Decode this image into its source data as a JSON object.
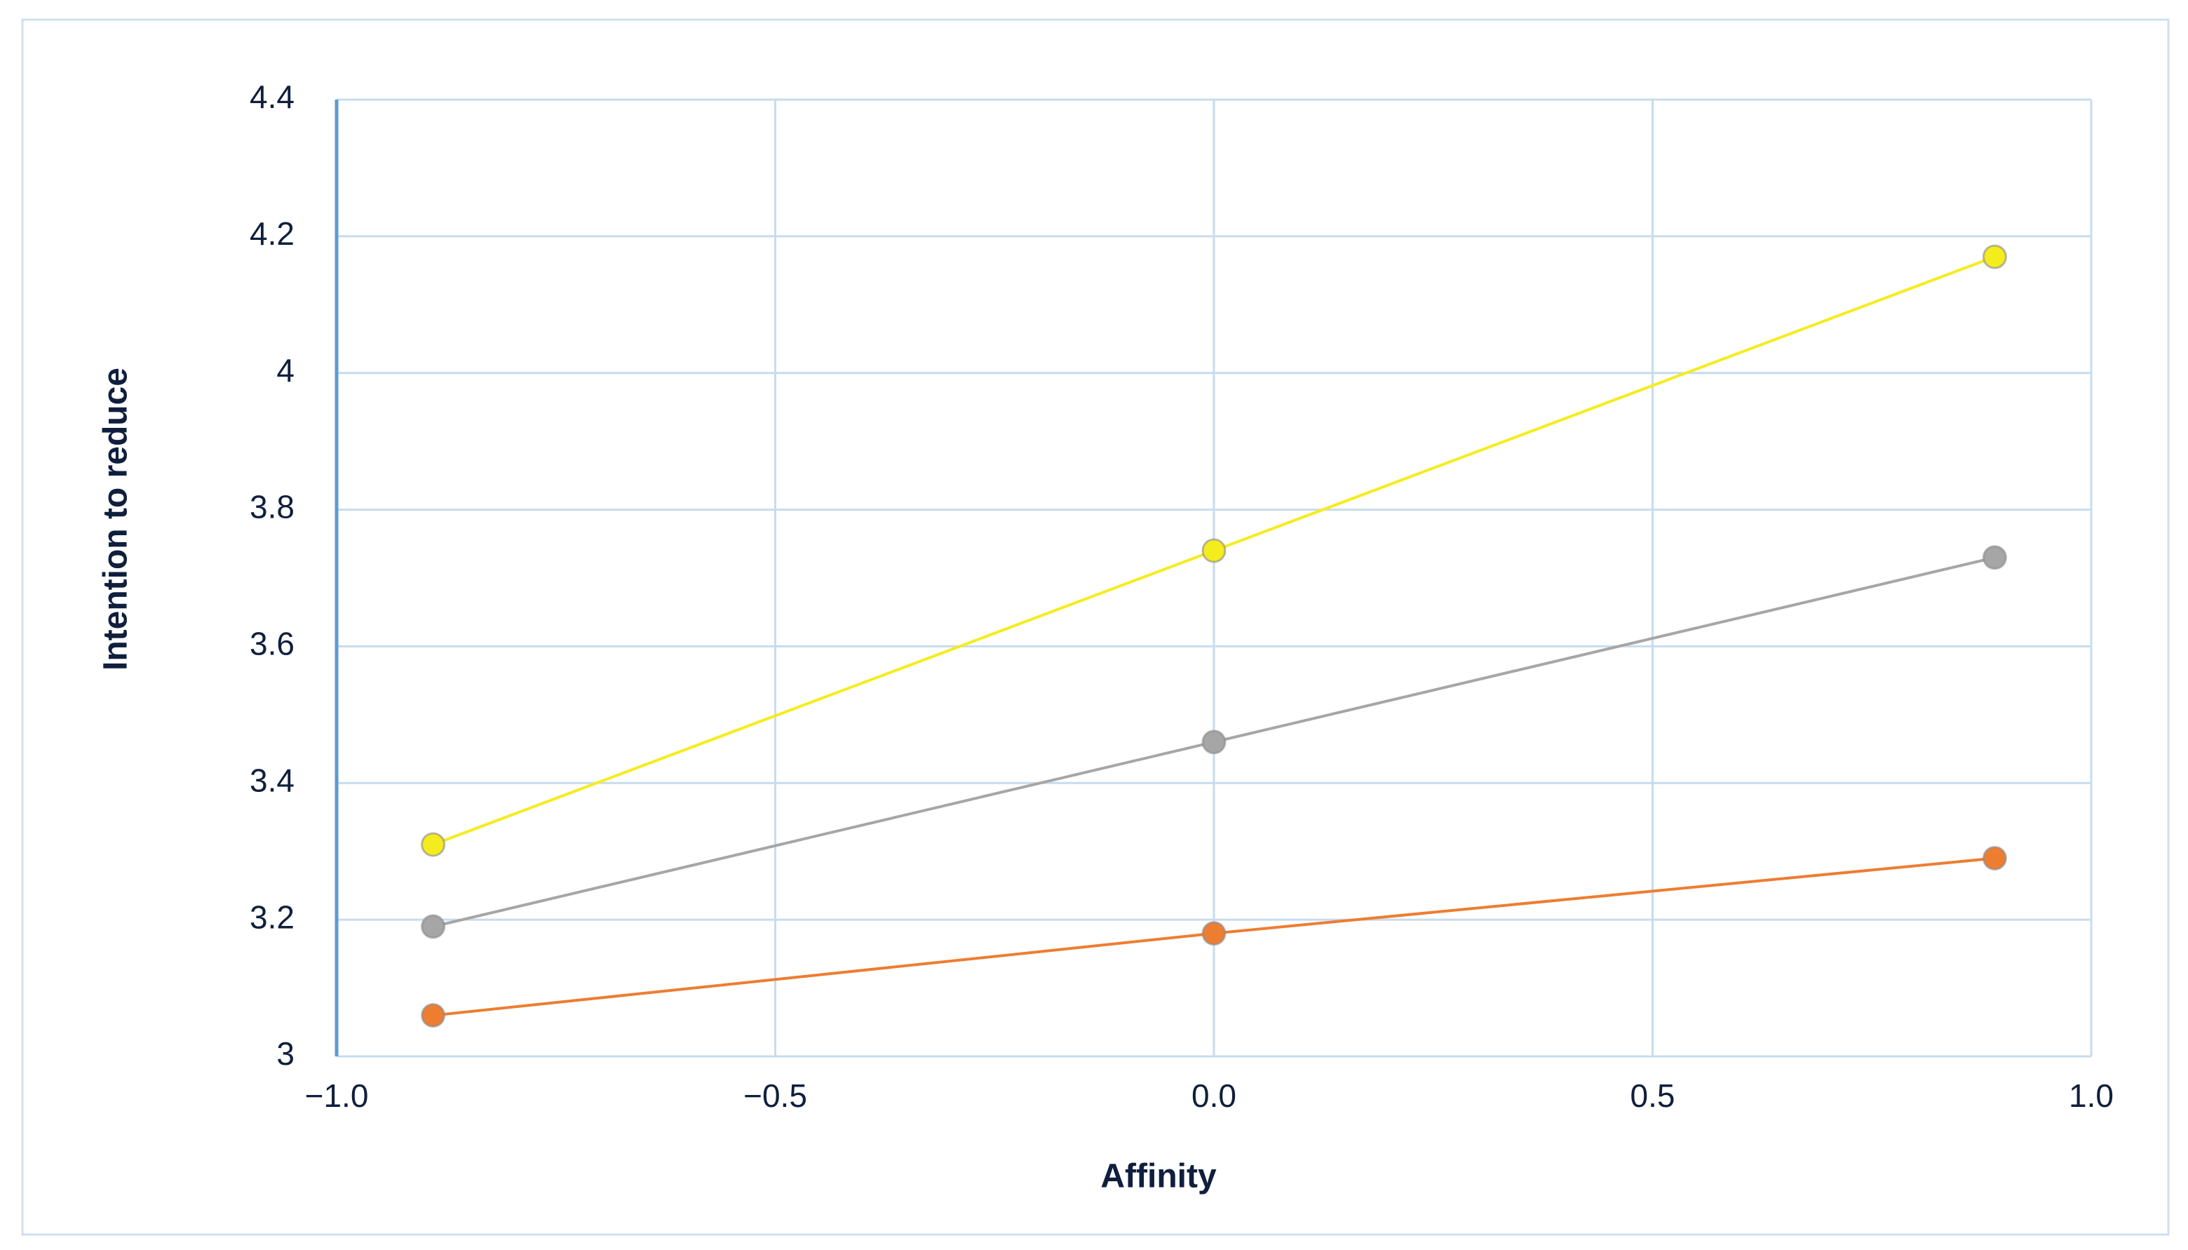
{
  "chart_data": {
    "type": "line",
    "x_label": "Affinity",
    "y_label": "Intention to reduce",
    "x": [
      -0.89,
      0,
      0.89
    ],
    "series": [
      {
        "color": "#f5ec1e",
        "values": [
          3.31,
          3.74,
          4.17
        ]
      },
      {
        "color": "#a6a6a6",
        "values": [
          3.19,
          3.46,
          3.73
        ]
      },
      {
        "color": "#ed7d31",
        "values": [
          3.06,
          3.18,
          3.29
        ]
      }
    ],
    "xlim": [
      -1,
      1
    ],
    "xticks": [
      {
        "value": -1,
        "label": "−1.0"
      },
      {
        "value": -0.5,
        "label": "−0.5"
      },
      {
        "value": 0,
        "label": "0.0"
      },
      {
        "value": 0.5,
        "label": "0.5"
      },
      {
        "value": 1,
        "label": "1.0"
      }
    ],
    "ylim": [
      3,
      4.4
    ],
    "yticks": [
      3,
      3.2,
      3.4,
      3.6,
      3.8,
      4,
      4.2,
      4.4
    ],
    "grid": true
  }
}
